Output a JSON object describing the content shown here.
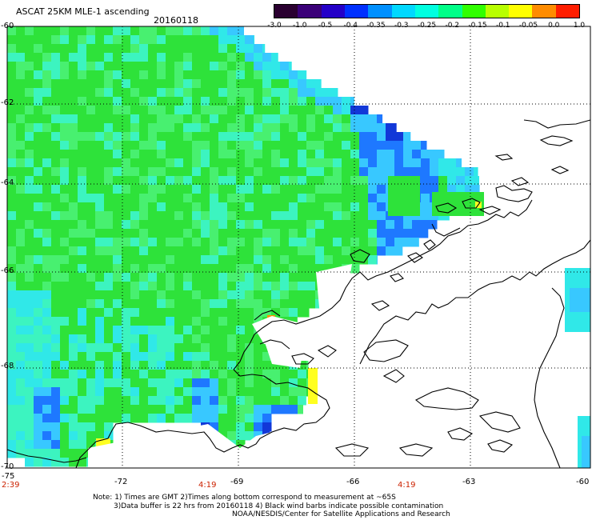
{
  "header": {
    "title": "ASCAT 25KM MLE-1 ascending",
    "date": "20160118"
  },
  "colorbar": {
    "labels": [
      "-3.0",
      "-1.0",
      "-0.5",
      "-0.4",
      "-0.35",
      "-0.3",
      "-0.25",
      "-0.2",
      "-0.15",
      "-0.1",
      "-0.05",
      "0.0",
      "1.0"
    ],
    "colors": [
      "#2a0030",
      "#3a0078",
      "#2400c8",
      "#0030ff",
      "#0090ff",
      "#00d8ff",
      "#00ffe0",
      "#00ff88",
      "#30ff00",
      "#b8ff00",
      "#ffff00",
      "#ff8c00",
      "#ff1e00"
    ]
  },
  "axes": {
    "lat_labels": [
      "-60",
      "-62",
      "-64",
      "-66",
      "-68",
      "-70"
    ],
    "lon_labels": [
      "-75",
      "-72",
      "-69",
      "-66",
      "-63",
      "-60"
    ]
  },
  "times": {
    "t1": "2:39",
    "t2": "4:19",
    "t3": "4:19"
  },
  "notes": {
    "line1": "Note: 1) Times are GMT 2)Times along bottom correspond to measurement at ~65S",
    "line2": "3)Data buffer is 22 hrs from 20160118 4) Black wind barbs indicate possible contamination",
    "line3": "NOAA/NESDIS/Center for Satellite Applications and Research"
  },
  "map": {
    "region": "Antarctic Peninsula",
    "lat_range": [
      -70,
      -60
    ],
    "lon_range": [
      -75,
      -60
    ],
    "field_colors": {
      "green": "#2ee23a",
      "light_green": "#48f070",
      "cyan_green": "#3cf4c0",
      "cyan": "#30e8e8",
      "light_blue": "#38c8ff",
      "blue": "#1e78ff",
      "dark_blue": "#1238d8",
      "yellow": "#ffff20",
      "orange": "#ff9000"
    }
  }
}
